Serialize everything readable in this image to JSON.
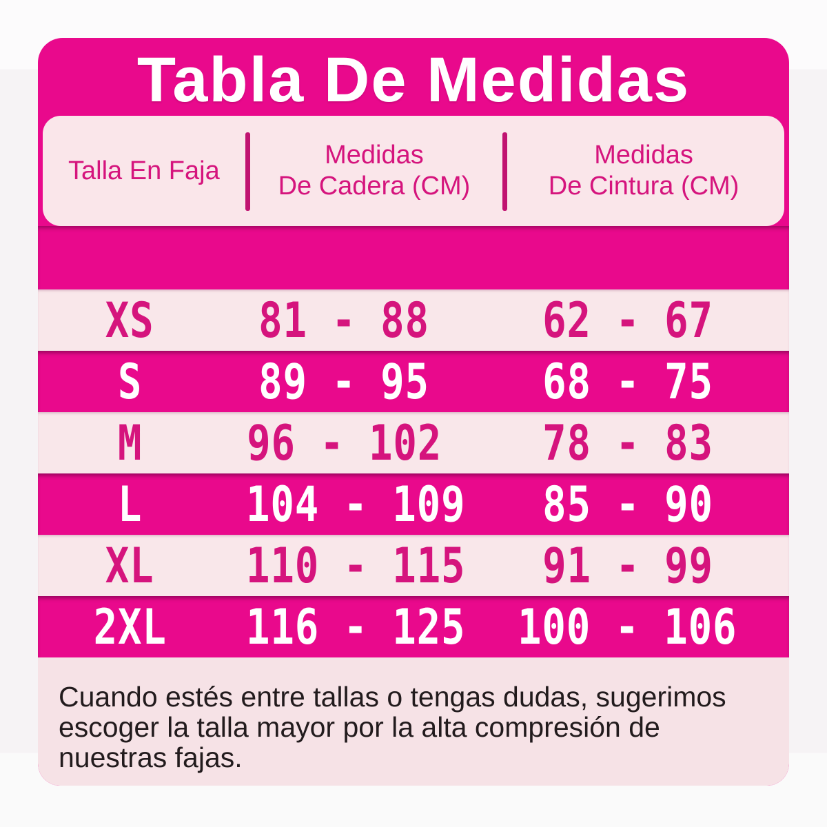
{
  "chart_data": {
    "type": "table",
    "title": "Tabla De Medidas",
    "columns": [
      "Talla En Faja",
      "Medidas De Cadera (CM)",
      "Medidas De Cintura (CM)"
    ],
    "rows": [
      [
        "XS",
        "81 - 88",
        "62 - 67"
      ],
      [
        "S",
        "89 - 95",
        "68 - 75"
      ],
      [
        "M",
        "96 - 102",
        "78 - 83"
      ],
      [
        "L",
        "104 - 109",
        "85 - 90"
      ],
      [
        "XL",
        "110 - 115",
        "91 - 99"
      ],
      [
        "2XL",
        "116 - 125",
        "100 - 106"
      ]
    ],
    "note": "Cuando estés entre tallas o tengas dudas, sugerimos escoger la talla mayor por la alta compresión de nuestras fajas."
  },
  "header": {
    "columns": [
      {
        "lines": [
          "Talla En Faja"
        ]
      },
      {
        "lines": [
          "Medidas",
          "De Cadera (CM)"
        ]
      },
      {
        "lines": [
          "Medidas",
          "De Cintura (CM)"
        ]
      }
    ]
  },
  "footer": {
    "lines": [
      "Cuando estés entre tallas o tengas dudas, sugerimos",
      "escoger la talla mayor por la alta compresión de",
      "nuestras fajas."
    ]
  },
  "colors": {
    "magenta": "#E9098C",
    "magenta-text": "#D5147D",
    "divider": "#C01371",
    "pink": "#F9E7EA",
    "pink-header": "#FAE6EA",
    "pink-footer": "#F6E2E6",
    "text-dark": "#221B1D"
  }
}
